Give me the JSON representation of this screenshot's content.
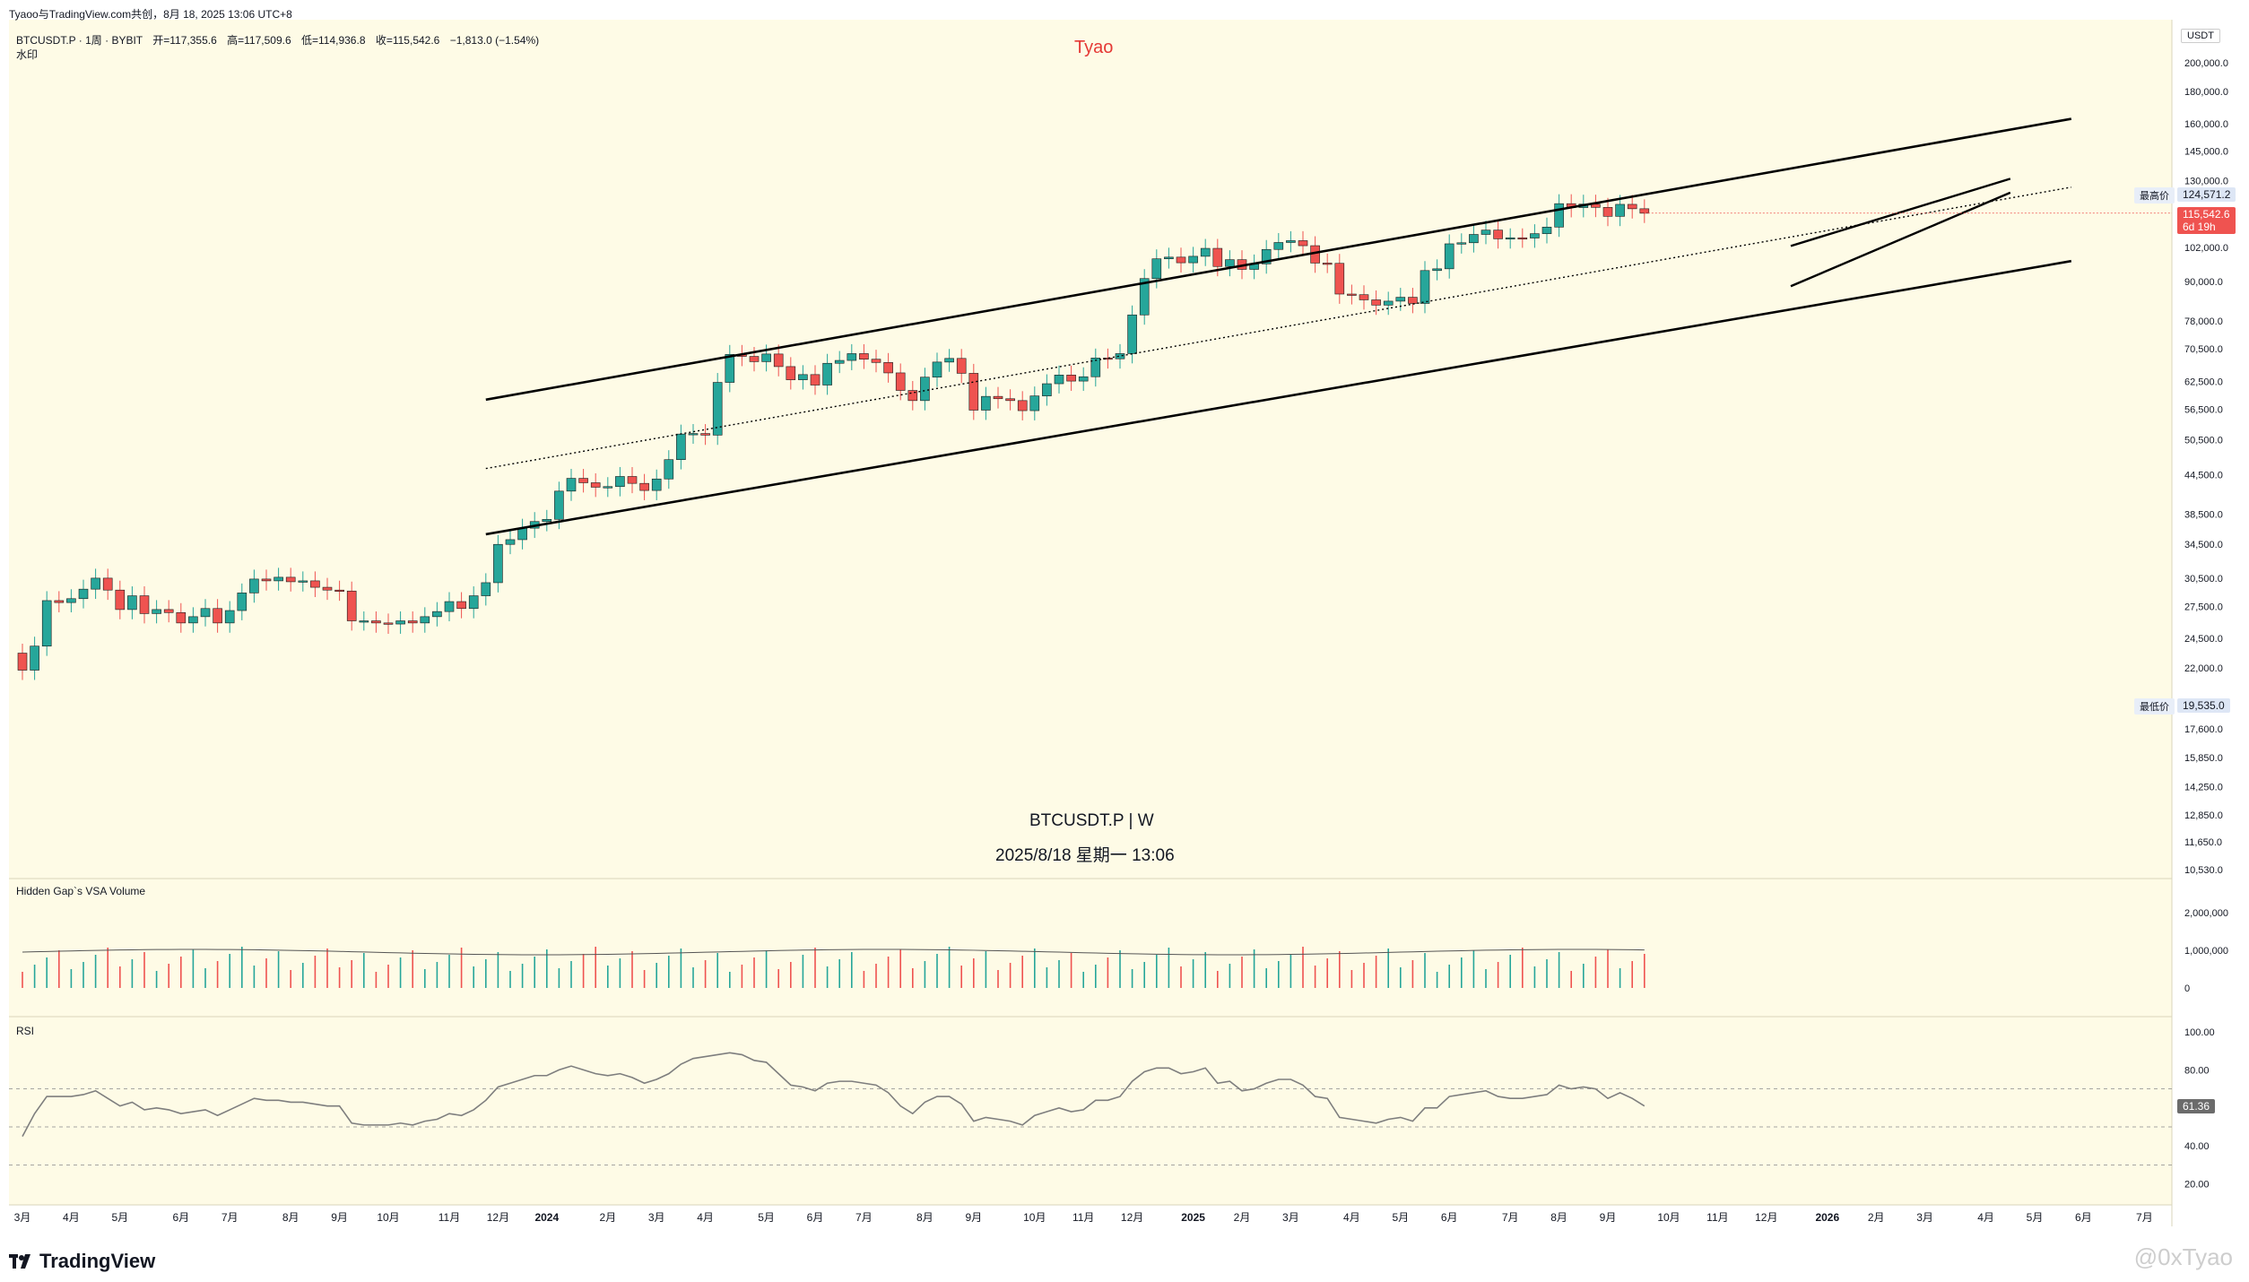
{
  "header": {
    "publisher": "Tyaoo与TradingView.com共创，8月 18, 2025 13:06 UTC+8",
    "symbol_line": "BTCUSDT.P · 1周 · BYBIT",
    "open_label": "开=117,355.6",
    "high_label": "高=117,509.6",
    "low_label": "低=114,936.8",
    "close_label": "收=115,542.6",
    "change_label": "−1,813.0 (−1.54%)",
    "sub_label": "水印"
  },
  "author_tag": "Tyao",
  "center_watermark": {
    "symbol": "BTCUSDT.P | W",
    "datetime": "2025/8/18 星期一 13:06"
  },
  "brand": "TradingView",
  "corner_watermark": "@0xTyao",
  "price_axis": {
    "currency": "USDT",
    "ticks": [
      "200,000.0",
      "180,000.0",
      "160,000.0",
      "145,000.0",
      "130,000.0",
      "102,000.0",
      "90,000.0",
      "78,000.0",
      "70,500.0",
      "62,500.0",
      "56,500.0",
      "50,500.0",
      "44,500.0",
      "38,500.0",
      "34,500.0",
      "30,500.0",
      "27,500.0",
      "24,500.0",
      "22,000.0",
      "17,600.0",
      "15,850.0",
      "14,250.0",
      "12,850.0",
      "11,650.0",
      "10,530.0"
    ],
    "tick_values": [
      200000,
      180000,
      160000,
      145000,
      130000,
      102000,
      90000,
      78000,
      70500,
      62500,
      56500,
      50500,
      44500,
      38500,
      34500,
      30500,
      27500,
      24500,
      22000,
      17600,
      15850,
      14250,
      12850,
      11650,
      10530
    ],
    "high_tag_label": "最高价",
    "high_tag_value": "124,571.2",
    "low_tag_label": "最低价",
    "low_tag_value": "19,535.0",
    "last_price": "115,542.6",
    "countdown": "6d 19h"
  },
  "time_axis": {
    "labels": [
      "3月",
      "4月",
      "5月",
      "6月",
      "7月",
      "8月",
      "9月",
      "10月",
      "11月",
      "12月",
      "2024",
      "2月",
      "3月",
      "4月",
      "5月",
      "6月",
      "7月",
      "8月",
      "9月",
      "10月",
      "11月",
      "12月",
      "2025",
      "2月",
      "3月",
      "4月",
      "5月",
      "6月",
      "7月",
      "8月",
      "9月",
      "10月",
      "11月",
      "12月",
      "2026",
      "2月",
      "3月",
      "4月",
      "5月",
      "6月",
      "7月"
    ],
    "label_weeks": [
      0,
      4,
      8,
      13,
      17,
      22,
      26,
      30,
      35,
      39,
      43,
      48,
      52,
      56,
      61,
      65,
      69,
      74,
      78,
      83,
      87,
      91,
      96,
      100,
      104,
      109,
      113,
      117,
      122,
      126,
      130,
      135,
      139,
      143,
      148,
      152,
      156,
      161,
      165,
      169,
      174
    ]
  },
  "volume_panel": {
    "title": "Hidden Gap`s VSA Volume",
    "ticks": [
      "2,000,000",
      "1,000,000",
      "0"
    ],
    "tick_values": [
      2000000,
      1000000,
      0
    ]
  },
  "rsi_panel": {
    "title": "RSI",
    "ticks": [
      "100.00",
      "80.00",
      "40.00",
      "20.00"
    ],
    "tick_values": [
      100,
      80,
      40,
      20
    ],
    "current": "61.36",
    "upper_band": 70,
    "mid_band": 50,
    "lower_band": 30
  },
  "colors": {
    "up": "#26a69a",
    "down": "#ef5350",
    "background": "#fefbe6",
    "trendline": "#000000",
    "author": "#e53935",
    "rsi_line": "#7e7e7e"
  },
  "chart_data": {
    "type": "candlestick",
    "interval": "1W",
    "symbol": "BTCUSDT.P",
    "exchange": "BYBIT",
    "y_scale": "log",
    "ylim": [
      10530,
      200000
    ],
    "week_index_start": "2023-02-27",
    "closes": [
      21800,
      23800,
      28100,
      27900,
      28300,
      29300,
      30500,
      29200,
      27200,
      28600,
      26800,
      27200,
      26900,
      25900,
      26500,
      27300,
      25900,
      27100,
      28900,
      30400,
      30200,
      30600,
      30100,
      30200,
      29500,
      29200,
      29100,
      26100,
      26100,
      25900,
      25800,
      26100,
      25900,
      26500,
      27000,
      28000,
      27300,
      28600,
      30000,
      34500,
      35100,
      36600,
      37500,
      37800,
      41900,
      43900,
      43200,
      42500,
      42600,
      44200,
      43100,
      42000,
      43800,
      47000,
      51600,
      51700,
      51400,
      62300,
      69000,
      68500,
      67200,
      69100,
      66000,
      62900,
      64100,
      61700,
      66800,
      67500,
      69200,
      67800,
      67000,
      64500,
      60500,
      58300,
      63500,
      67100,
      68000,
      64400,
      56300,
      59200,
      58700,
      58300,
      56200,
      59300,
      62000,
      64000,
      62600,
      63600,
      68100,
      67900,
      69200,
      79700,
      91000,
      97800,
      98400,
      96400,
      98700,
      101600,
      95100,
      97500,
      94100,
      96000,
      101200,
      103800,
      104500,
      102600,
      96300,
      96200,
      86000,
      85800,
      84200,
      82600,
      83800,
      85000,
      83100,
      93700,
      94300,
      103300,
      103700,
      106900,
      108600,
      105200,
      105600,
      105500,
      107200,
      109800,
      119600,
      117900,
      119400,
      118000,
      114200,
      119300,
      117400,
      115500
    ],
    "rsi_approx": [
      45,
      57,
      66,
      66,
      66,
      67,
      69,
      65,
      61,
      63,
      59,
      60,
      59,
      57,
      58,
      59,
      56,
      59,
      62,
      65,
      64,
      64,
      63,
      63,
      62,
      61,
      61,
      52,
      51,
      51,
      51,
      52,
      51,
      53,
      54,
      57,
      56,
      59,
      64,
      71,
      73,
      75,
      77,
      77,
      80,
      82,
      80,
      78,
      77,
      78,
      76,
      73,
      75,
      78,
      83,
      86,
      87,
      88,
      89,
      88,
      85,
      84,
      78,
      72,
      71,
      69,
      73,
      74,
      74,
      73,
      72,
      68,
      61,
      57,
      63,
      66,
      66,
      62,
      53,
      55,
      54,
      53,
      51,
      56,
      58,
      60,
      58,
      59,
      64,
      64,
      66,
      74,
      79,
      81,
      81,
      78,
      79,
      81,
      73,
      74,
      69,
      70,
      73,
      75,
      75,
      72,
      66,
      65,
      55,
      54,
      53,
      52,
      54,
      55,
      53,
      60,
      60,
      66,
      67,
      68,
      69,
      66,
      65,
      65,
      66,
      67,
      72,
      70,
      71,
      70,
      65,
      68,
      65,
      61
    ]
  }
}
